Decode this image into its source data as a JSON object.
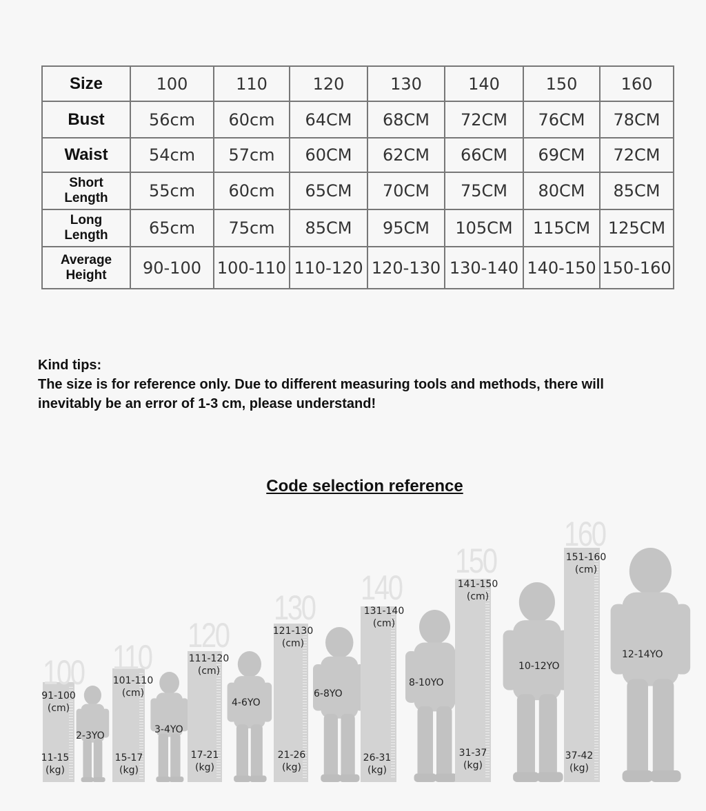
{
  "size_table": {
    "rows": [
      {
        "label": "Size",
        "values": [
          "100",
          "110",
          "120",
          "130",
          "140",
          "150",
          "160"
        ]
      },
      {
        "label": "Bust",
        "values": [
          "56cm",
          "60cm",
          "64CM",
          "68CM",
          "72CM",
          "76CM",
          "78CM"
        ]
      },
      {
        "label": "Waist",
        "values": [
          "54cm",
          "57cm",
          "60CM",
          "62CM",
          "66CM",
          "69CM",
          "72CM"
        ]
      },
      {
        "label": "Short Length",
        "values": [
          "55cm",
          "60cm",
          "65CM",
          "70CM",
          "75CM",
          "80CM",
          "85CM"
        ]
      },
      {
        "label": "Long Length",
        "values": [
          "65cm",
          "75cm",
          "85CM",
          "95CM",
          "105CM",
          "115CM",
          "125CM"
        ]
      },
      {
        "label": "Average Height",
        "values": [
          "90-100",
          "100-110",
          "110-120",
          "120-130",
          "130-140",
          "140-150",
          "150-160"
        ]
      }
    ]
  },
  "tips": {
    "heading": "Kind tips:",
    "text": "The size is for reference only. Due to different measuring tools and methods, there will inevitably be an error of 1-3 cm, please understand!"
  },
  "reference": {
    "title": "Code selection reference",
    "groups": [
      {
        "size": "100",
        "height": "91-100",
        "height_unit": "(cm)",
        "weight": "11-15",
        "weight_unit": "(kg)",
        "age": "2-3YO"
      },
      {
        "size": "110",
        "height": "101-110",
        "height_unit": "(cm)",
        "weight": "15-17",
        "weight_unit": "(kg)",
        "age": "3-4YO"
      },
      {
        "size": "120",
        "height": "111-120",
        "height_unit": "(cm)",
        "weight": "17-21",
        "weight_unit": "(kg)",
        "age": "4-6YO"
      },
      {
        "size": "130",
        "height": "121-130",
        "height_unit": "(cm)",
        "weight": "21-26",
        "weight_unit": "(kg)",
        "age": "6-8YO"
      },
      {
        "size": "140",
        "height": "131-140",
        "height_unit": "(cm)",
        "weight": "26-31",
        "weight_unit": "(kg)",
        "age": "8-10YO"
      },
      {
        "size": "150",
        "height": "141-150",
        "height_unit": "(cm)",
        "weight": "31-37",
        "weight_unit": "(kg)",
        "age": "10-12YO"
      },
      {
        "size": "160",
        "height": "151-160",
        "height_unit": "(cm)",
        "weight": "37-42",
        "weight_unit": "(kg)",
        "age": "12-14YO"
      }
    ]
  }
}
